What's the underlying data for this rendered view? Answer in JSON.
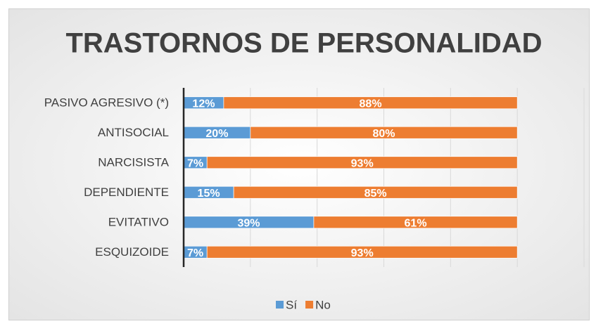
{
  "chart_data": {
    "type": "stacked-bar",
    "orientation": "horizontal",
    "title": "TRASTORNOS DE PERSONALIDAD",
    "categories": [
      "PASIVO AGRESIVO (*)",
      "ANTISOCIAL",
      "NARCISISTA",
      "DEPENDIENTE",
      "EVITATIVO",
      "ESQUIZOIDE"
    ],
    "series": [
      {
        "name": "Sí",
        "color": "#5b9bd5",
        "values": [
          12,
          20,
          7,
          15,
          39,
          7
        ],
        "value_labels": [
          "12%",
          "20%",
          "7%",
          "15%",
          "39%",
          "7%"
        ]
      },
      {
        "name": "No",
        "color": "#ed7d31",
        "values": [
          88,
          80,
          93,
          85,
          61,
          93
        ],
        "value_labels": [
          "88%",
          "80%",
          "93%",
          "85%",
          "61%",
          "93%"
        ]
      }
    ],
    "xlim": [
      0,
      120
    ],
    "xticks": [
      0,
      20,
      40,
      60,
      80,
      100,
      120
    ],
    "grid": true,
    "legend": "bottom"
  }
}
